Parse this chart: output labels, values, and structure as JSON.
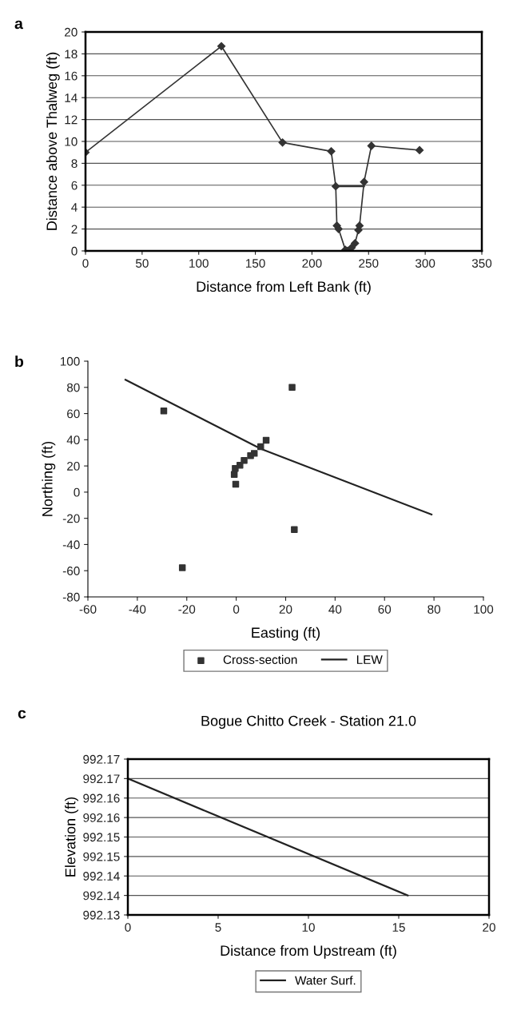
{
  "chart_data": [
    {
      "type": "line",
      "xlabel": "Distance from Left Bank (ft)",
      "ylabel": "Distance above Thalweg (ft)",
      "annotations": [
        "a"
      ],
      "xlim": [
        0,
        350
      ],
      "xticks": [
        0,
        50,
        100,
        150,
        200,
        250,
        300,
        350
      ],
      "ylim": [
        0,
        20
      ],
      "yticks": [
        0,
        2,
        4,
        6,
        8,
        10,
        12,
        14,
        16,
        18,
        20
      ],
      "grid": "y",
      "legend": false,
      "series": [
        {
          "color": "#333333",
          "marker": "diamond",
          "x": [
            0,
            120,
            174,
            217,
            221,
            222,
            223.5,
            229.5,
            231.5,
            235,
            238,
            241,
            242,
            246,
            252.5,
            295
          ],
          "values": [
            9.0,
            18.7,
            9.9,
            9.1,
            5.9,
            2.3,
            2.0,
            0.1,
            0.0,
            0.3,
            0.7,
            1.9,
            2.3,
            6.3,
            9.6,
            9.2
          ]
        },
        {
          "color": "#333333",
          "marker": "none",
          "x": [
            221,
            246
          ],
          "values": [
            5.9,
            5.9
          ]
        }
      ]
    },
    {
      "type": "scatter",
      "xlabel": "Easting (ft)",
      "ylabel": "Northing (ft)",
      "annotations": [
        "b"
      ],
      "xlim": [
        -60,
        100
      ],
      "xticks": [
        -60,
        -40,
        -20,
        0,
        20,
        40,
        60,
        80,
        100
      ],
      "ylim": [
        -80,
        100
      ],
      "yticks": [
        -80,
        -60,
        -40,
        -20,
        0,
        20,
        40,
        60,
        80,
        100
      ],
      "legend": "bottom",
      "series": [
        {
          "name": "Cross-section",
          "type": "scatter",
          "color": "#333333",
          "marker": "square",
          "x": [
            22.6,
            -29.3,
            12.1,
            9.9,
            7.3,
            5.8,
            3.2,
            1.5,
            -0.4,
            -0.8,
            -0.2,
            23.5,
            -21.8
          ],
          "values": [
            80,
            62,
            39.6,
            34.7,
            29.6,
            27.9,
            24.2,
            20.5,
            18.1,
            13.5,
            6.1,
            -28.6,
            -57.7
          ]
        },
        {
          "name": "LEW",
          "type": "line",
          "color": "#222222",
          "marker": "none",
          "x": [
            -44.8,
            10,
            79
          ],
          "values": [
            85.8,
            33,
            -17.1
          ]
        }
      ]
    },
    {
      "type": "line",
      "title": "Bogue Chitto Creek - Station 21.0",
      "xlabel": "Distance from Upstream (ft)",
      "ylabel": "Elevation (ft)",
      "annotations": [
        "c"
      ],
      "xlim": [
        0,
        20
      ],
      "xticks": [
        0,
        5,
        10,
        15,
        20
      ],
      "ylim": [
        992.13,
        992.17
      ],
      "yticks": [
        {
          "value": 992.13,
          "label": "992.13"
        },
        {
          "value": 992.135,
          "label": "992.14"
        },
        {
          "value": 992.14,
          "label": "992.14"
        },
        {
          "value": 992.145,
          "label": "992.15"
        },
        {
          "value": 992.15,
          "label": "992.15"
        },
        {
          "value": 992.155,
          "label": "992.16"
        },
        {
          "value": 992.16,
          "label": "992.16"
        },
        {
          "value": 992.165,
          "label": "992.17"
        },
        {
          "value": 992.17,
          "label": "992.17"
        }
      ],
      "grid": "y",
      "legend": "bottom",
      "series": [
        {
          "name": "Water Surf.",
          "color": "#222222",
          "marker": "none",
          "x": [
            0,
            15.5
          ],
          "values": [
            992.165,
            992.135
          ]
        }
      ]
    }
  ]
}
